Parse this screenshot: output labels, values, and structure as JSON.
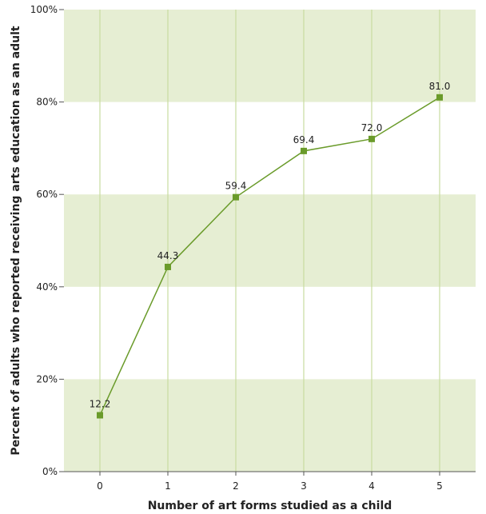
{
  "chart_data": {
    "type": "line",
    "title": "",
    "xlabel": "Number of art forms studied as a child",
    "ylabel": "Percent of adults who reported receiving arts education as an adult",
    "x": [
      0,
      1,
      2,
      3,
      4,
      5
    ],
    "x_tick_labels": [
      "0",
      "1",
      "2",
      "3",
      "4",
      "5"
    ],
    "y_tick_labels": [
      "0%",
      "20%",
      "40%",
      "60%",
      "80%",
      "100%"
    ],
    "ylim": [
      0,
      100
    ],
    "series": [
      {
        "values": [
          12.2,
          44.3,
          59.4,
          69.4,
          72.0,
          81.0
        ],
        "value_labels": [
          "12.2",
          "44.3",
          "59.4",
          "69.4",
          "72.0",
          "81.0"
        ]
      }
    ],
    "grid": "vertical lines; alternating shaded horizontal bands",
    "colors": {
      "line": "#6a9b2a",
      "marker": "#6a9b2a",
      "band": "#e6eed3",
      "gridline": "#c9dca0"
    }
  }
}
